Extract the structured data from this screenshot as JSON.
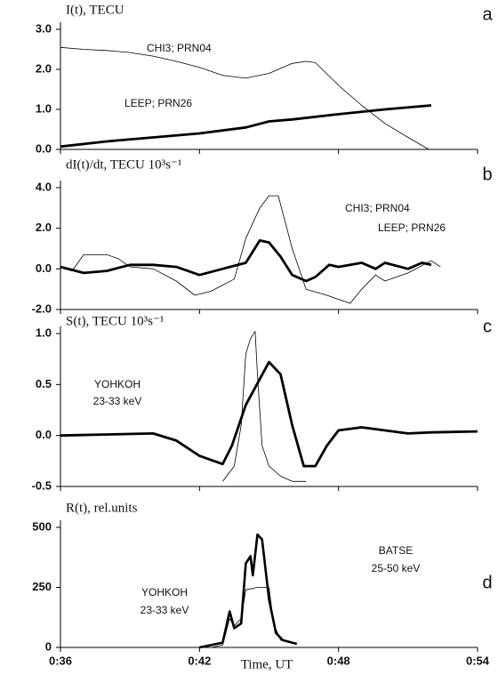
{
  "chart_data": [
    {
      "type": "line",
      "title": "I(t), TECU",
      "panel": "a",
      "ylim": [
        0,
        3
      ],
      "yticks": [
        {
          "value": 0,
          "label": "0.0"
        },
        {
          "value": 1,
          "label": "1.0"
        },
        {
          "value": 2,
          "label": "2.0"
        },
        {
          "value": 3,
          "label": "3.0"
        }
      ],
      "series": [
        {
          "name": "CHI3; PRN04",
          "color": "#000",
          "linewidth": 0.8,
          "x": [
            36,
            37,
            38,
            39,
            40,
            41,
            42,
            43,
            44,
            45,
            46,
            46.6,
            47,
            48,
            49,
            50,
            51,
            51.9
          ],
          "values": [
            2.55,
            2.5,
            2.47,
            2.42,
            2.33,
            2.2,
            2.05,
            1.85,
            1.78,
            1.9,
            2.15,
            2.2,
            2.17,
            1.6,
            1.1,
            0.65,
            0.3,
            0
          ]
        },
        {
          "name": "LEEP; PRN26",
          "color": "#000",
          "linewidth": 2.8,
          "x": [
            36,
            38,
            40,
            42,
            44,
            45,
            46,
            48,
            50,
            52
          ],
          "values": [
            0.07,
            0.2,
            0.3,
            0.4,
            0.55,
            0.7,
            0.75,
            0.88,
            1.0,
            1.1
          ]
        }
      ]
    },
    {
      "type": "line",
      "title": "dI(t)/dt, TECU 10³s⁻¹",
      "panel": "b",
      "ylim": [
        -2,
        4
      ],
      "yticks": [
        {
          "value": -2,
          "label": "-2.0"
        },
        {
          "value": 0,
          "label": "0.0"
        },
        {
          "value": 2,
          "label": "2.0"
        },
        {
          "value": 4,
          "label": "4.0"
        }
      ],
      "series": [
        {
          "name": "CHI3; PRN04",
          "color": "#000",
          "linewidth": 0.8,
          "x": [
            36,
            36.5,
            37,
            38,
            38.5,
            39,
            40,
            41,
            41.8,
            42.5,
            43,
            43.5,
            44,
            44.6,
            45,
            45.4,
            46,
            46.6,
            47.5,
            48.5,
            49,
            49.6,
            50,
            51,
            52,
            52.4
          ],
          "values": [
            0.1,
            -0.1,
            0.7,
            0.7,
            0.5,
            0.1,
            0.0,
            -0.6,
            -1.3,
            -1.1,
            -0.8,
            -0.5,
            1.5,
            3.0,
            3.6,
            3.6,
            1.0,
            -1.0,
            -1.3,
            -1.7,
            -1.0,
            -0.3,
            -0.6,
            -0.2,
            0.4,
            0.1
          ]
        },
        {
          "name": "LEEP; PRN26",
          "color": "#000",
          "linewidth": 2.8,
          "x": [
            36,
            37,
            38,
            39,
            40,
            41,
            42,
            43,
            44,
            44.6,
            45,
            45.5,
            46,
            46.6,
            47,
            47.6,
            48,
            49,
            49.6,
            50,
            51,
            51.6,
            52
          ],
          "values": [
            0.1,
            -0.2,
            -0.1,
            0.2,
            0.2,
            0.1,
            -0.3,
            0.0,
            0.3,
            1.4,
            1.3,
            0.6,
            -0.3,
            -0.6,
            -0.4,
            0.2,
            0.1,
            0.3,
            0.0,
            0.3,
            0.0,
            0.3,
            0.2
          ]
        }
      ]
    },
    {
      "type": "line",
      "title": "S(t), TECU 10³s⁻¹",
      "panel": "c",
      "annotations": [
        "23-33 keV"
      ],
      "ylim": [
        -0.5,
        1
      ],
      "yticks": [
        {
          "value": -0.5,
          "label": "-0.5"
        },
        {
          "value": 0,
          "label": "0.0"
        },
        {
          "value": 0.5,
          "label": "0.5"
        },
        {
          "value": 1,
          "label": "1.0"
        }
      ],
      "series": [
        {
          "color": "#000",
          "linewidth": 2.8,
          "x": [
            36,
            40,
            41,
            42,
            43,
            43.4,
            44,
            45,
            45.5,
            46,
            46.5,
            47,
            47.5,
            48,
            49,
            51,
            52,
            54
          ],
          "values": [
            0,
            0.02,
            -0.05,
            -0.2,
            -0.28,
            -0.1,
            0.3,
            0.72,
            0.6,
            0.1,
            -0.3,
            -0.3,
            -0.1,
            0.05,
            0.08,
            0.02,
            0.03,
            0.04
          ]
        },
        {
          "name": "YOHKOH",
          "color": "#000",
          "linewidth": 0.8,
          "x": [
            43,
            43.5,
            43.8,
            44.0,
            44.2,
            44.4,
            44.5,
            44.7,
            45,
            45.5,
            46,
            46.6
          ],
          "values": [
            -0.45,
            -0.3,
            0.1,
            0.8,
            0.95,
            1.02,
            0.6,
            -0.1,
            -0.3,
            -0.4,
            -0.45,
            -0.45
          ]
        }
      ]
    },
    {
      "type": "line",
      "title": "R(t), rel.units",
      "panel": "d",
      "xlabel": "Time, UT",
      "annotations": [
        "25-50 keV",
        "23-33 keV"
      ],
      "xlim": [
        36,
        54
      ],
      "xticks": [
        {
          "value": 36,
          "label": "0:36"
        },
        {
          "value": 42,
          "label": "0:42"
        },
        {
          "value": 48,
          "label": "0:48"
        },
        {
          "value": 54,
          "label": "0:54"
        }
      ],
      "ylim": [
        0,
        500
      ],
      "yticks": [
        0,
        250,
        500
      ],
      "series": [
        {
          "name": "BATSE",
          "color": "#000",
          "linewidth": 2.6,
          "x": [
            42,
            43,
            43.3,
            43.5,
            43.8,
            44,
            44.2,
            44.3,
            44.5,
            44.7,
            45,
            45.3,
            45.6,
            46,
            46.2
          ],
          "values": [
            0,
            20,
            150,
            80,
            100,
            350,
            380,
            300,
            470,
            450,
            200,
            60,
            30,
            20,
            15
          ]
        },
        {
          "name": "YOHKOH",
          "color": "#000",
          "linewidth": 0.8,
          "x": [
            42.5,
            43,
            43.3,
            43.5,
            43.8,
            44,
            44.5,
            45,
            45.2,
            45.5,
            46
          ],
          "values": [
            0,
            10,
            120,
            90,
            120,
            240,
            250,
            250,
            100,
            30,
            20
          ]
        }
      ]
    }
  ]
}
